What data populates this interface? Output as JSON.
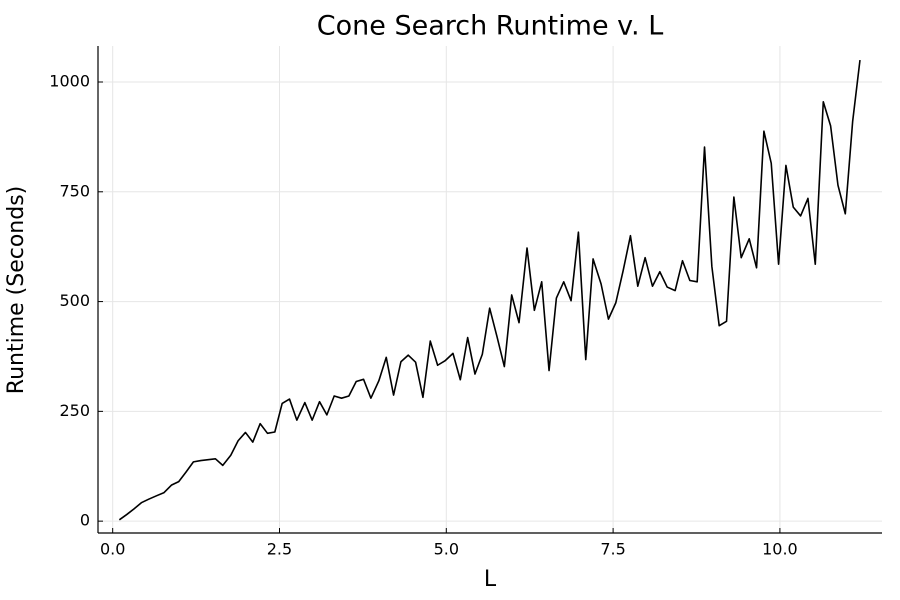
{
  "chart_data": {
    "type": "line",
    "title": "Cone Search Runtime v. L",
    "xlabel": "L",
    "ylabel": "Runtime (Seconds)",
    "x": [
      0.1,
      0.21,
      0.32,
      0.43,
      0.54,
      0.66,
      0.77,
      0.88,
      0.99,
      1.1,
      1.21,
      1.32,
      1.43,
      1.54,
      1.65,
      1.77,
      1.88,
      1.99,
      2.1,
      2.21,
      2.32,
      2.43,
      2.54,
      2.65,
      2.76,
      2.88,
      2.99,
      3.1,
      3.21,
      3.32,
      3.43,
      3.54,
      3.65,
      3.76,
      3.87,
      3.99,
      4.1,
      4.21,
      4.32,
      4.43,
      4.54,
      4.65,
      4.76,
      4.87,
      4.98,
      5.1,
      5.21,
      5.32,
      5.43,
      5.54,
      5.65,
      5.76,
      5.87,
      5.98,
      6.09,
      6.21,
      6.32,
      6.43,
      6.54,
      6.65,
      6.76,
      6.87,
      6.98,
      7.09,
      7.2,
      7.32,
      7.43,
      7.54,
      7.65,
      7.76,
      7.87,
      7.98,
      8.09,
      8.2,
      8.31,
      8.43,
      8.54,
      8.65,
      8.76,
      8.87,
      8.98,
      9.09,
      9.2,
      9.31,
      9.42,
      9.54,
      9.65,
      9.76,
      9.87,
      9.98,
      10.09,
      10.2,
      10.31,
      10.42,
      10.53,
      10.65,
      10.76,
      10.87,
      10.98,
      11.09,
      11.2
    ],
    "series": [
      {
        "color": "#000000",
        "values": [
          3,
          15,
          28,
          42,
          50,
          58,
          65,
          82,
          90,
          112,
          135,
          138,
          140,
          142,
          127,
          150,
          183,
          202,
          180,
          222,
          200,
          203,
          268,
          278,
          230,
          270,
          230,
          272,
          242,
          285,
          280,
          285,
          318,
          323,
          280,
          320,
          373,
          287,
          363,
          378,
          362,
          282,
          410,
          355,
          365,
          382,
          322,
          418,
          335,
          380,
          485,
          420,
          352,
          515,
          452,
          622,
          480,
          545,
          343,
          508,
          545,
          502,
          658,
          368,
          597,
          540,
          460,
          497,
          570,
          650,
          535,
          600,
          535,
          568,
          533,
          525,
          593,
          548,
          545,
          852,
          580,
          445,
          455,
          738,
          600,
          643,
          577,
          888,
          815,
          585,
          810,
          715,
          695,
          735,
          585,
          955,
          900,
          765,
          700,
          910,
          1050
        ]
      }
    ],
    "xlim": [
      -0.22,
      11.53
    ],
    "ylim": [
      -27,
      1082
    ],
    "xticks": [
      {
        "value": 0,
        "label": "0.0"
      },
      2.5,
      {
        "value": 5,
        "label": "5.0"
      },
      7.5,
      {
        "value": 10,
        "label": "10.0"
      }
    ],
    "yticks": [
      0,
      250,
      500,
      750,
      1000
    ],
    "grid": true
  }
}
